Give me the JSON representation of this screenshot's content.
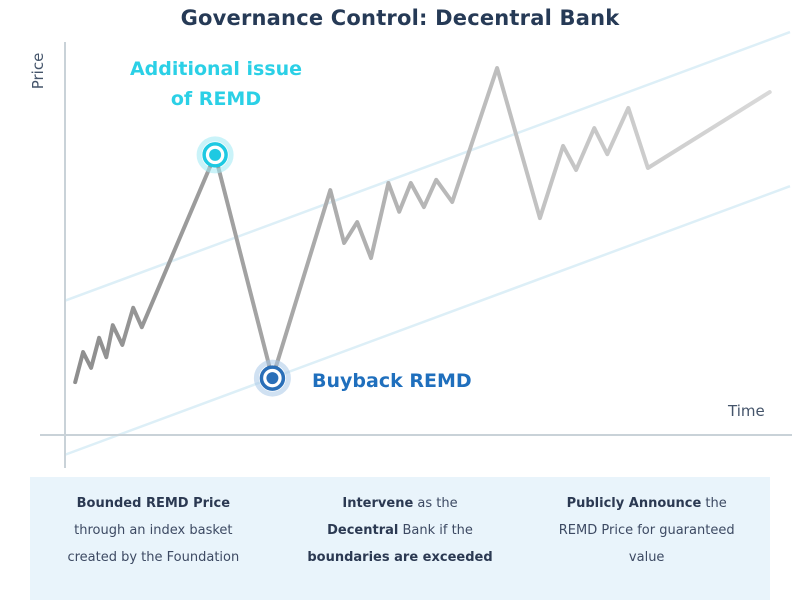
{
  "title": "Governance Control: Decentral Bank",
  "annotations": {
    "issue": {
      "line1": "Additional issue",
      "line2": "of REMD",
      "color": "#2bd0e6"
    },
    "buyback": {
      "label": "Buyback REMD",
      "color": "#1f6fbd"
    }
  },
  "chart_data": {
    "type": "line",
    "title": "Governance Control: Decentral Bank",
    "xlabel": "Time",
    "ylabel": "Price",
    "grid": false,
    "legend": "none",
    "axis_note": "axes are unlabeled; point values normalized 0-100 of visible axis range",
    "xlim": [
      0,
      100
    ],
    "ylim": [
      0,
      100
    ],
    "series": [
      {
        "name": "REMD price",
        "points": [
          [
            1.4,
            13.4
          ],
          [
            2.5,
            21.0
          ],
          [
            3.6,
            17.0
          ],
          [
            4.7,
            24.6
          ],
          [
            5.7,
            19.7
          ],
          [
            6.6,
            27.8
          ],
          [
            7.9,
            22.8
          ],
          [
            9.4,
            32.2
          ],
          [
            10.6,
            27.3
          ],
          [
            20.7,
            70.9
          ],
          [
            28.6,
            14.4
          ],
          [
            36.6,
            62.0
          ],
          [
            38.5,
            48.6
          ],
          [
            40.3,
            53.9
          ],
          [
            42.2,
            44.8
          ],
          [
            44.6,
            63.8
          ],
          [
            46.1,
            56.5
          ],
          [
            47.7,
            63.8
          ],
          [
            49.5,
            57.7
          ],
          [
            51.2,
            64.6
          ],
          [
            53.4,
            59.0
          ],
          [
            59.6,
            92.9
          ],
          [
            65.5,
            54.9
          ],
          [
            68.7,
            73.2
          ],
          [
            70.5,
            67.1
          ],
          [
            73.0,
            77.7
          ],
          [
            74.8,
            71.1
          ],
          [
            77.7,
            82.8
          ],
          [
            80.4,
            67.6
          ],
          [
            97.2,
            86.8
          ]
        ]
      }
    ],
    "boundaries": [
      {
        "name": "upper-boundary-line",
        "points": [
          [
            0,
            34
          ],
          [
            100,
            102
          ]
        ]
      },
      {
        "name": "lower-boundary-line",
        "points": [
          [
            0,
            -5
          ],
          [
            100,
            63
          ]
        ]
      }
    ],
    "markers": [
      {
        "name": "additional-issue-marker",
        "t": 20.7,
        "p": 70.9,
        "core": "#1ec9e2",
        "glow": "#9fe9f4"
      },
      {
        "name": "buyback-marker",
        "t": 28.6,
        "p": 14.4,
        "core": "#2a6fb8",
        "glow": "#a9c9e8"
      }
    ],
    "colors": {
      "line_start": "#8e8e8e",
      "line_mid": "#b3b3b3",
      "line_end": "#d9d9d9",
      "boundary": "#ddeff7",
      "axis": "#c9d2d8"
    }
  },
  "footer": {
    "cards": [
      {
        "lines": [
          [
            {
              "t": "Bounded REMD Price",
              "b": true
            }
          ],
          [
            {
              "t": "through an index basket"
            }
          ],
          [
            {
              "t": "created by the Foundation"
            }
          ]
        ]
      },
      {
        "lines": [
          [
            {
              "t": "Intervene",
              "b": true
            },
            {
              "t": " as the"
            }
          ],
          [
            {
              "t": "Decentral",
              "b": true
            },
            {
              "t": " Bank if the"
            }
          ],
          [
            {
              "t": "boundaries are exceeded",
              "b": true
            }
          ]
        ]
      },
      {
        "lines": [
          [
            {
              "t": "Publicly Announce",
              "b": true
            },
            {
              "t": " the"
            }
          ],
          [
            {
              "t": "REMD Price for guaranteed"
            }
          ],
          [
            {
              "t": "value"
            }
          ]
        ]
      }
    ]
  }
}
